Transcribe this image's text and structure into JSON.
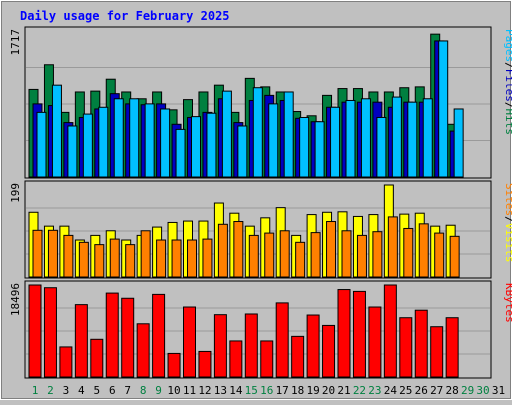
{
  "chart_data": {
    "type": "bar",
    "title": "Daily usage for February 2025",
    "categories": [
      "1",
      "2",
      "3",
      "4",
      "5",
      "6",
      "7",
      "8",
      "9",
      "10",
      "11",
      "12",
      "13",
      "14",
      "15",
      "16",
      "17",
      "18",
      "19",
      "20",
      "21",
      "22",
      "23",
      "24",
      "25",
      "26",
      "27",
      "28",
      "29",
      "30",
      "31"
    ],
    "weekend_days": [
      "1",
      "2",
      "8",
      "9",
      "15",
      "16",
      "22",
      "23",
      "29",
      "30"
    ],
    "panels": [
      {
        "id": "hits-files-pages",
        "ymax_label": "1717",
        "ymax": 1717,
        "right_labels": [
          "Pages",
          "/",
          "Files",
          "/",
          "Hits"
        ],
        "right_colors": [
          "#00c0ff",
          "#000000",
          "#0000c0",
          "#000000",
          "#008040"
        ],
        "series": [
          {
            "name": "Hits",
            "color": "#008040",
            "values": [
              1030,
              1320,
              760,
              1000,
              1010,
              1150,
              1000,
              920,
              1000,
              790,
              910,
              1000,
              1080,
              760,
              1160,
              1060,
              1000,
              770,
              720,
              960,
              1040,
              1040,
              1000,
              1000,
              1050,
              1060,
              1680,
              620,
              0,
              0,
              0
            ]
          },
          {
            "name": "Files",
            "color": "#0000c0",
            "values": [
              860,
              840,
              640,
              700,
              800,
              980,
              860,
              850,
              860,
              620,
              700,
              760,
              920,
              640,
              900,
              960,
              900,
              690,
              650,
              820,
              880,
              880,
              880,
              820,
              880,
              880,
              1600,
              540,
              0,
              0,
              0
            ]
          },
          {
            "name": "Pages",
            "color": "#00c0ff",
            "values": [
              760,
              1080,
              600,
              740,
              820,
              920,
              920,
              860,
              800,
              560,
              710,
              750,
              1010,
              600,
              1050,
              860,
              1000,
              700,
              650,
              820,
              900,
              920,
              700,
              940,
              880,
              920,
              1600,
              800,
              0,
              0,
              0
            ]
          }
        ]
      },
      {
        "id": "visits-sites",
        "ymax_label": "199",
        "ymax": 199,
        "right_labels": [
          "Sites",
          "/",
          "Visits"
        ],
        "right_colors": [
          "#ff8000",
          "#000000",
          "#ffff00"
        ],
        "series": [
          {
            "name": "Visits",
            "color": "#ffff00",
            "values": [
              140,
              110,
              110,
              80,
              90,
              100,
              80,
              90,
              108,
              118,
              121,
              121,
              160,
              138,
              110,
              128,
              150,
              90,
              135,
              140,
              141,
              131,
              135,
              199,
              136,
              138,
              110,
              112,
              0,
              0,
              0
            ]
          },
          {
            "name": "Sites",
            "color": "#ff8000",
            "values": [
              101,
              101,
              90,
              75,
              70,
              82,
              70,
              100,
              80,
              80,
              80,
              82,
              114,
              120,
              90,
              95,
              100,
              75,
              96,
              120,
              100,
              90,
              98,
              130,
              105,
              115,
              95,
              88,
              0,
              0,
              0
            ]
          }
        ]
      },
      {
        "id": "kbytes",
        "ymax_label": "18496",
        "ymax": 18496,
        "right_labels": [
          "KBytes"
        ],
        "right_colors": [
          "#ff0000"
        ],
        "series": [
          {
            "name": "KBytes",
            "color": "#ff0000",
            "values": [
              18496,
              17950,
              6048,
              14550,
              7580,
              16870,
              15830,
              10700,
              16610,
              4740,
              14070,
              5140,
              12530,
              7250,
              12670,
              7250,
              14900,
              8170,
              12460,
              10370,
              17580,
              17210,
              14070,
              18496,
              11920,
              13430,
              10110,
              11920,
              0,
              0,
              0
            ]
          }
        ]
      }
    ]
  }
}
